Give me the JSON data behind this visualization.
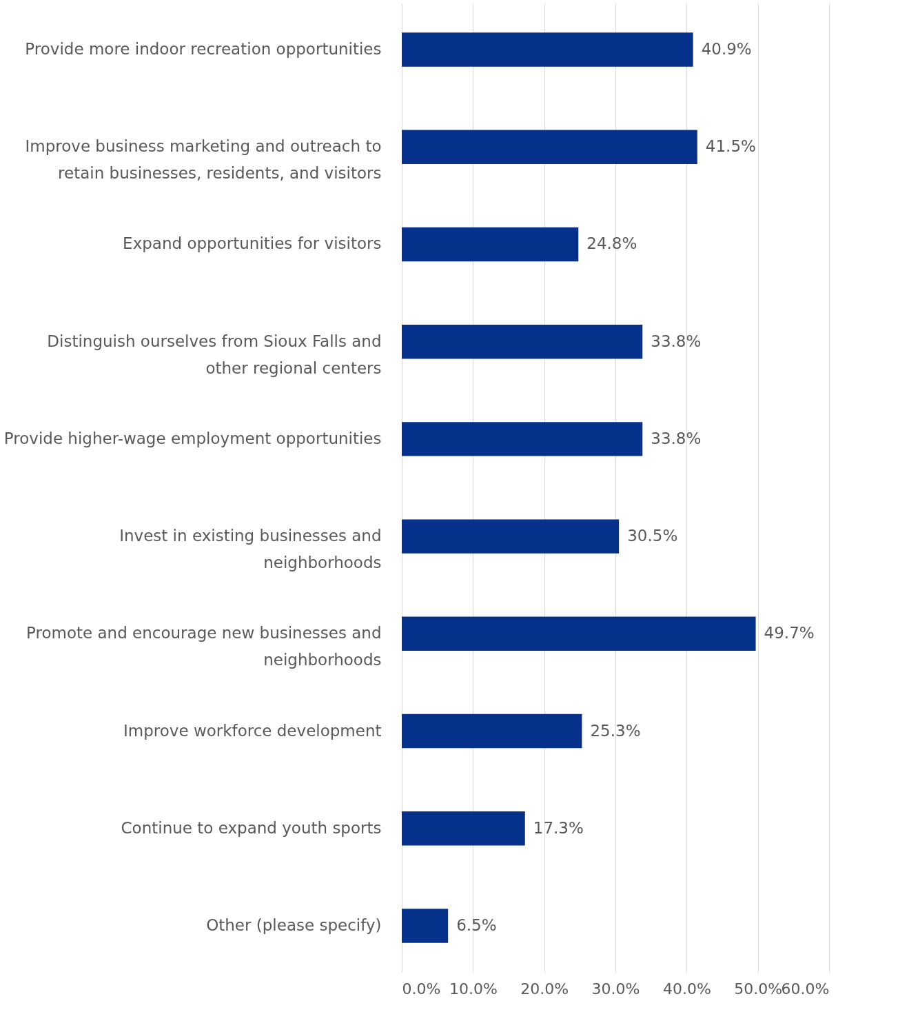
{
  "chart_data": {
    "type": "bar",
    "orientation": "horizontal",
    "categories": [
      "Provide more indoor recreation opportunities",
      "Improve business marketing and outreach to retain businesses, residents, and visitors",
      "Expand opportunities for visitors",
      "Distinguish ourselves from Sioux Falls and other regional centers",
      "Provide higher-wage employment opportunities",
      "Invest in existing businesses and neighborhoods",
      "Promote and encourage new businesses and neighborhoods",
      "Improve workforce development",
      "Continue to expand youth sports",
      "Other (please specify)"
    ],
    "values": [
      40.9,
      41.5,
      24.8,
      33.8,
      33.8,
      30.5,
      49.7,
      25.3,
      17.3,
      6.5
    ],
    "value_labels": [
      "40.9%",
      "41.5%",
      "24.8%",
      "33.8%",
      "33.8%",
      "30.5%",
      "49.7%",
      "25.3%",
      "17.3%",
      "6.5%"
    ],
    "color": "#05318b",
    "xlim": [
      0,
      60
    ],
    "xticks": [
      {
        "value": 0,
        "label": "0.0%"
      },
      {
        "value": 10,
        "label": "10.0%"
      },
      {
        "value": 20,
        "label": "20.0%"
      },
      {
        "value": 30,
        "label": "30.0%"
      },
      {
        "value": 40,
        "label": "40.0%"
      },
      {
        "value": 50,
        "label": "50.0%"
      },
      {
        "value": 60,
        "label": "60.0%"
      }
    ],
    "grid": "x"
  }
}
